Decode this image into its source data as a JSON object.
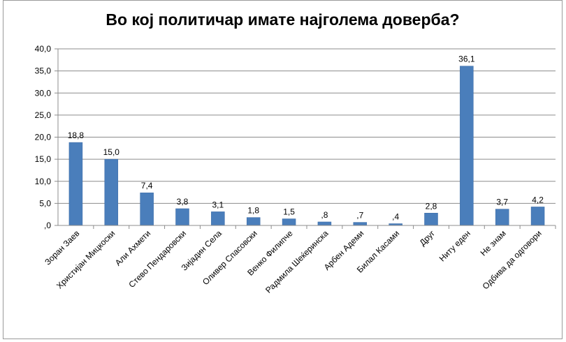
{
  "chart_data": {
    "type": "bar",
    "title": "Во кој политичар имате најголема доверба?",
    "categories": [
      "Зоран Заев",
      "Христијан Мицкоски",
      "Али Ахмети",
      "Стево Пендаровски",
      "Зијадин Села",
      "Оливер Спасовски",
      "Венко Филипче",
      "Радмила Шеќеринска",
      "Арбен Адеми",
      "Билал Касами",
      "Друг",
      "Ниту еден",
      "Не знам",
      "Одбива да одговори"
    ],
    "values": [
      18.8,
      15.0,
      7.4,
      3.8,
      3.1,
      1.8,
      1.5,
      0.8,
      0.7,
      0.4,
      2.8,
      36.1,
      3.7,
      4.2
    ],
    "data_labels": [
      "18,8",
      "15,0",
      "7,4",
      "3,8",
      "3,1",
      "1,8",
      "1,5",
      ",8",
      ",7",
      ",4",
      "2,8",
      "36,1",
      "3,7",
      "4,2"
    ],
    "y_ticks": [
      ",0",
      "5,0",
      "10,0",
      "15,0",
      "20,0",
      "25,0",
      "30,0",
      "35,0",
      "40,0"
    ],
    "ylim": [
      0,
      40
    ],
    "y_step": 5,
    "grid": true,
    "legend": "none",
    "bar_color": "#4a7ebb",
    "grid_color": "#8c8c8c"
  }
}
